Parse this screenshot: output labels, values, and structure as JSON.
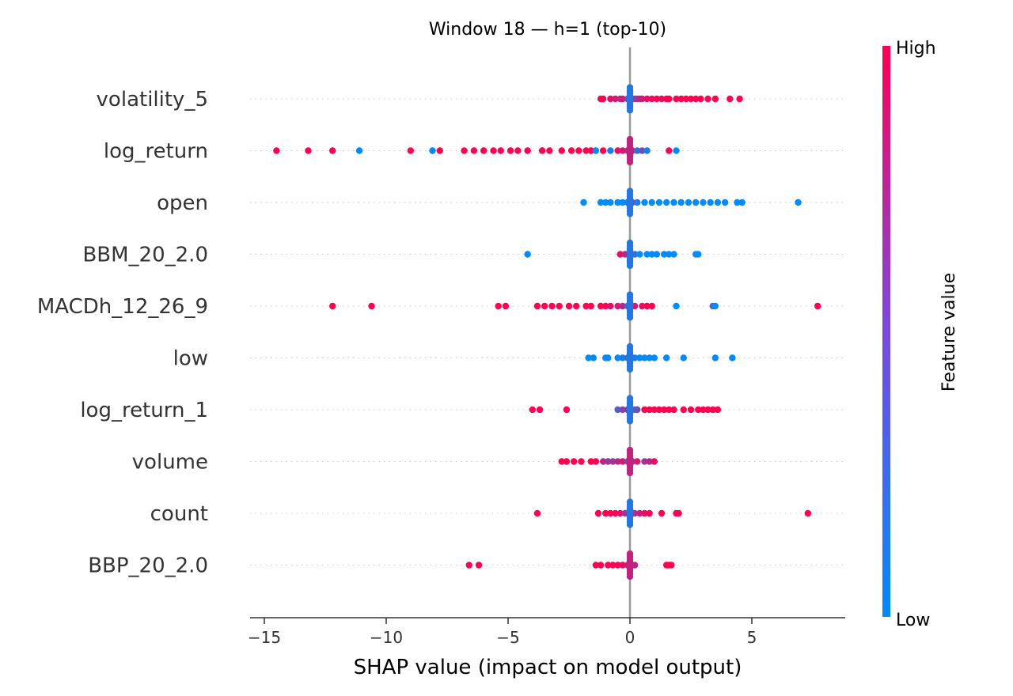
{
  "chart_data": {
    "type": "scatter",
    "subtype": "shap-beeswarm",
    "title": "Window 18 — h=1 (top-10)",
    "xlabel": "SHAP value (impact on model output)",
    "xlim": [
      -15.6,
      8.7
    ],
    "xticks": [
      -15,
      -10,
      -5,
      0,
      5
    ],
    "xtick_labels": [
      "−15",
      "−10",
      "−5",
      "0",
      "5"
    ],
    "grid": "dotted horizontal row lines",
    "colorbar": {
      "label": "Feature value",
      "high_label": "High",
      "low_label": "Low",
      "high_color": "#ff0052",
      "low_color": "#008bfb",
      "placement": "right"
    },
    "features": [
      {
        "name": "volatility_5",
        "points": [
          [
            -1.2,
            1.0
          ],
          [
            -1.1,
            1.0
          ],
          [
            -0.8,
            0.9
          ],
          [
            -0.6,
            0.8
          ],
          [
            -0.4,
            0.7
          ],
          [
            -0.3,
            0.8
          ],
          [
            -0.1,
            0.4
          ],
          [
            0,
            0.3
          ],
          [
            0,
            0.2
          ],
          [
            0,
            0.1
          ],
          [
            0,
            0.0
          ],
          [
            0,
            0.1
          ],
          [
            0.1,
            0.5
          ],
          [
            0.2,
            0.6
          ],
          [
            0.3,
            0.5
          ],
          [
            0.4,
            0.7
          ],
          [
            0.5,
            0.8
          ],
          [
            0.7,
            0.9
          ],
          [
            0.9,
            0.9
          ],
          [
            1.1,
            1.0
          ],
          [
            1.3,
            0.9
          ],
          [
            1.5,
            1.0
          ],
          [
            1.6,
            1.0
          ],
          [
            1.9,
            1.0
          ],
          [
            2.1,
            1.0
          ],
          [
            2.3,
            1.0
          ],
          [
            2.5,
            1.0
          ],
          [
            2.7,
            1.0
          ],
          [
            2.9,
            1.0
          ],
          [
            3.2,
            1.0
          ],
          [
            3.5,
            1.0
          ],
          [
            4.1,
            1.0
          ],
          [
            4.5,
            1.0
          ]
        ]
      },
      {
        "name": "log_return",
        "points": [
          [
            -14.5,
            1.0
          ],
          [
            -13.2,
            1.0
          ],
          [
            -12.2,
            1.0
          ],
          [
            -11.1,
            0.0
          ],
          [
            -9.0,
            1.0
          ],
          [
            -8.1,
            0.0
          ],
          [
            -7.8,
            1.0
          ],
          [
            -6.8,
            1.0
          ],
          [
            -6.4,
            1.0
          ],
          [
            -6.0,
            1.0
          ],
          [
            -5.6,
            1.0
          ],
          [
            -5.3,
            1.0
          ],
          [
            -4.9,
            1.0
          ],
          [
            -4.6,
            1.0
          ],
          [
            -4.2,
            1.0
          ],
          [
            -3.6,
            1.0
          ],
          [
            -3.3,
            1.0
          ],
          [
            -2.8,
            1.0
          ],
          [
            -2.4,
            1.0
          ],
          [
            -2.1,
            1.0
          ],
          [
            -1.8,
            1.0
          ],
          [
            -1.6,
            1.0
          ],
          [
            -1.4,
            0.0
          ],
          [
            -1.1,
            1.0
          ],
          [
            -0.8,
            0.1
          ],
          [
            -0.5,
            0.9
          ],
          [
            -0.3,
            0.8
          ],
          [
            -0.1,
            0.7
          ],
          [
            0,
            0.6
          ],
          [
            0,
            0.5
          ],
          [
            0.1,
            0.7
          ],
          [
            0.3,
            0.2
          ],
          [
            0.5,
            0.4
          ],
          [
            0.7,
            0.1
          ],
          [
            1.6,
            1.0
          ],
          [
            1.9,
            0.0
          ]
        ]
      },
      {
        "name": "open",
        "points": [
          [
            -1.9,
            0.0
          ],
          [
            -1.2,
            0.0
          ],
          [
            -1.0,
            0.0
          ],
          [
            -0.8,
            0.0
          ],
          [
            -0.5,
            0.0
          ],
          [
            -0.3,
            0.0
          ],
          [
            -0.1,
            0.1
          ],
          [
            0,
            0.3
          ],
          [
            0,
            0.6
          ],
          [
            0,
            0.9
          ],
          [
            0.1,
            0.5
          ],
          [
            0.3,
            0.1
          ],
          [
            0.6,
            0.0
          ],
          [
            0.9,
            0.0
          ],
          [
            1.2,
            0.0
          ],
          [
            1.5,
            0.0
          ],
          [
            1.8,
            0.0
          ],
          [
            2.1,
            0.0
          ],
          [
            2.4,
            0.0
          ],
          [
            2.7,
            0.0
          ],
          [
            3.0,
            0.0
          ],
          [
            3.3,
            0.0
          ],
          [
            3.6,
            0.0
          ],
          [
            3.9,
            0.0
          ],
          [
            4.4,
            0.0
          ],
          [
            4.6,
            0.0
          ],
          [
            6.9,
            0.0
          ]
        ]
      },
      {
        "name": "BBM_20_2.0",
        "points": [
          [
            -4.2,
            0.0
          ],
          [
            -0.4,
            0.9
          ],
          [
            -0.2,
            0.7
          ],
          [
            0,
            0.8
          ],
          [
            0,
            0.5
          ],
          [
            0,
            0.3
          ],
          [
            0,
            0.1
          ],
          [
            0.2,
            0.2
          ],
          [
            0.4,
            0.0
          ],
          [
            0.7,
            0.0
          ],
          [
            0.9,
            0.0
          ],
          [
            1.1,
            0.0
          ],
          [
            1.4,
            0.0
          ],
          [
            1.6,
            0.0
          ],
          [
            1.8,
            0.0
          ],
          [
            2.7,
            0.0
          ],
          [
            2.8,
            0.0
          ]
        ]
      },
      {
        "name": "MACDh_12_26_9",
        "points": [
          [
            -12.2,
            1.0
          ],
          [
            -10.6,
            1.0
          ],
          [
            -5.4,
            1.0
          ],
          [
            -5.1,
            1.0
          ],
          [
            -3.8,
            1.0
          ],
          [
            -3.5,
            1.0
          ],
          [
            -3.2,
            1.0
          ],
          [
            -2.9,
            1.0
          ],
          [
            -2.5,
            1.0
          ],
          [
            -2.2,
            1.0
          ],
          [
            -1.8,
            1.0
          ],
          [
            -1.6,
            1.0
          ],
          [
            -1.2,
            1.0
          ],
          [
            -1.0,
            1.0
          ],
          [
            -0.8,
            0.9
          ],
          [
            -0.5,
            0.8
          ],
          [
            -0.3,
            0.7
          ],
          [
            -0.1,
            0.3
          ],
          [
            0,
            0.2
          ],
          [
            0,
            0.1
          ],
          [
            0,
            0.5
          ],
          [
            0.2,
            0.8
          ],
          [
            0.5,
            0.9
          ],
          [
            0.7,
            1.0
          ],
          [
            0.9,
            1.0
          ],
          [
            1.9,
            0.0
          ],
          [
            3.4,
            0.3
          ],
          [
            3.5,
            0.0
          ],
          [
            7.7,
            1.0
          ]
        ]
      },
      {
        "name": "low",
        "points": [
          [
            -1.7,
            0.0
          ],
          [
            -1.5,
            0.0
          ],
          [
            -1.0,
            0.0
          ],
          [
            -0.9,
            0.0
          ],
          [
            -0.5,
            0.0
          ],
          [
            -0.3,
            0.1
          ],
          [
            -0.1,
            0.2
          ],
          [
            0,
            0.0
          ],
          [
            0,
            0.1
          ],
          [
            0,
            0.2
          ],
          [
            0.2,
            0.1
          ],
          [
            0.4,
            0.0
          ],
          [
            0.6,
            0.0
          ],
          [
            0.8,
            0.0
          ],
          [
            1.0,
            0.0
          ],
          [
            1.5,
            0.0
          ],
          [
            2.2,
            0.0
          ],
          [
            3.5,
            0.0
          ],
          [
            4.2,
            0.0
          ]
        ]
      },
      {
        "name": "log_return_1",
        "points": [
          [
            -4.0,
            1.0
          ],
          [
            -3.7,
            1.0
          ],
          [
            -2.6,
            1.0
          ],
          [
            -0.5,
            0.3
          ],
          [
            -0.3,
            0.5
          ],
          [
            -0.1,
            0.6
          ],
          [
            0,
            0.7
          ],
          [
            0,
            0.8
          ],
          [
            0,
            0.4
          ],
          [
            0.2,
            0.3
          ],
          [
            0.3,
            0.4
          ],
          [
            0.6,
            1.0
          ],
          [
            0.8,
            1.0
          ],
          [
            1.0,
            1.0
          ],
          [
            1.2,
            1.0
          ],
          [
            1.4,
            1.0
          ],
          [
            1.6,
            1.0
          ],
          [
            1.8,
            1.0
          ],
          [
            2.2,
            1.0
          ],
          [
            2.5,
            1.0
          ],
          [
            2.8,
            1.0
          ],
          [
            3.0,
            1.0
          ],
          [
            3.2,
            1.0
          ],
          [
            3.4,
            1.0
          ],
          [
            3.6,
            1.0
          ]
        ]
      },
      {
        "name": "volume",
        "points": [
          [
            -2.8,
            1.0
          ],
          [
            -2.6,
            1.0
          ],
          [
            -2.3,
            1.0
          ],
          [
            -2.0,
            1.0
          ],
          [
            -1.6,
            1.0
          ],
          [
            -1.4,
            1.0
          ],
          [
            -1.1,
            0.7
          ],
          [
            -0.9,
            0.6
          ],
          [
            -0.7,
            0.6
          ],
          [
            -0.5,
            0.7
          ],
          [
            -0.3,
            0.8
          ],
          [
            -0.1,
            0.5
          ],
          [
            0,
            0.0
          ],
          [
            0,
            0.1
          ],
          [
            0,
            0.2
          ],
          [
            0.1,
            0.7
          ],
          [
            0.3,
            0.8
          ],
          [
            0.6,
            0.6
          ],
          [
            0.8,
            0.7
          ],
          [
            1.0,
            0.9
          ]
        ]
      },
      {
        "name": "count",
        "points": [
          [
            -3.8,
            1.0
          ],
          [
            -1.3,
            1.0
          ],
          [
            -1.0,
            1.0
          ],
          [
            -0.8,
            1.0
          ],
          [
            -0.6,
            1.0
          ],
          [
            -0.4,
            0.9
          ],
          [
            -0.2,
            0.6
          ],
          [
            0,
            0.5
          ],
          [
            0,
            0.3
          ],
          [
            0,
            0.1
          ],
          [
            0.1,
            0.7
          ],
          [
            0.2,
            0.6
          ],
          [
            0.4,
            0.8
          ],
          [
            0.6,
            0.9
          ],
          [
            0.8,
            1.0
          ],
          [
            1.3,
            1.0
          ],
          [
            1.9,
            1.0
          ],
          [
            2.0,
            1.0
          ],
          [
            7.3,
            1.0
          ]
        ]
      },
      {
        "name": "BBP_20_2.0",
        "points": [
          [
            -6.6,
            1.0
          ],
          [
            -6.2,
            1.0
          ],
          [
            -1.4,
            1.0
          ],
          [
            -1.2,
            1.0
          ],
          [
            -0.9,
            1.0
          ],
          [
            -0.7,
            1.0
          ],
          [
            -0.5,
            1.0
          ],
          [
            -0.3,
            0.9
          ],
          [
            -0.1,
            0.8
          ],
          [
            0,
            0.7
          ],
          [
            0,
            0.6
          ],
          [
            0,
            0.8
          ],
          [
            0.2,
            0.7
          ],
          [
            1.5,
            1.0
          ],
          [
            1.6,
            1.0
          ],
          [
            1.7,
            1.0
          ]
        ]
      }
    ]
  }
}
